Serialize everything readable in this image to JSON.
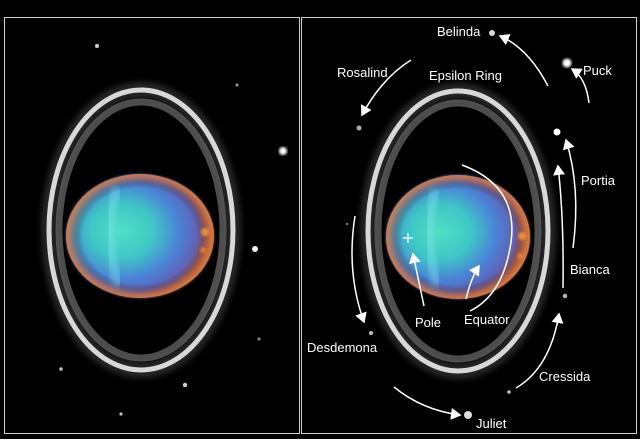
{
  "image": {
    "subject": "planet-with-rings",
    "panels": [
      "left-raw-view",
      "right-annotated-view"
    ],
    "background_color": "#000000",
    "frame_color": "#cfcfcf"
  },
  "labels": {
    "belinda": "Belinda",
    "puck": "Puck",
    "rosalind": "Rosalind",
    "epsilon_ring": "Epsilon Ring",
    "portia": "Portia",
    "bianca": "Bianca",
    "pole": "Pole",
    "equator": "Equator",
    "desdemona": "Desdemona",
    "cressida": "Cressida",
    "juliet": "Juliet"
  }
}
